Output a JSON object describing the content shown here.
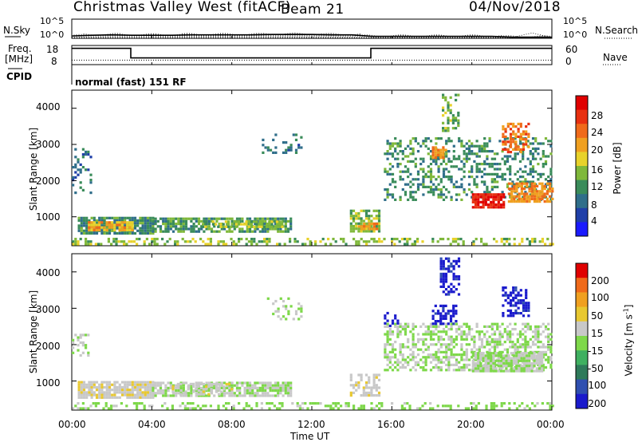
{
  "header": {
    "station": "Christmas Valley West (fitACF)",
    "beam": "Beam 21",
    "date": "04/Nov/2018"
  },
  "top_panels": {
    "nsky_label": "N.Sky",
    "nsky_ticks": [
      "10^5",
      "10^0"
    ],
    "nsearch_label": "N.Search",
    "nsearch_ticks": [
      "10^5",
      "10^0"
    ],
    "freq_label": "Freq.",
    "freq_unit": "[MHz]",
    "freq_ticks": [
      "18",
      "8"
    ],
    "nave_label": "Nave",
    "nave_ticks": [
      "60",
      "0"
    ],
    "cpid_label": "CPID",
    "cpid_text": "normal (fast) 151 RF"
  },
  "colors": {
    "power_scale": [
      "#1a1aff",
      "#1f3fa8",
      "#2f6e8a",
      "#3a8c5a",
      "#7fb83a",
      "#e8d22a",
      "#f0a020",
      "#f06a1a",
      "#e83010",
      "#e00000"
    ],
    "velocity_scale": [
      "#1a1acc",
      "#2f4fb0",
      "#2e7a5a",
      "#3fb060",
      "#7ed84a",
      "#c8c8c8",
      "#e8c830",
      "#f0a020",
      "#f06a1a",
      "#e00000"
    ]
  },
  "chart_data": [
    {
      "type": "line",
      "name": "nsky_nsearch",
      "y_log": true,
      "ylim": [
        0,
        5
      ],
      "x": [
        0,
        1,
        2,
        3,
        4,
        5,
        6,
        7,
        8,
        9,
        10,
        11,
        12,
        13,
        14,
        15,
        16,
        17,
        18,
        19,
        20,
        21,
        22,
        23,
        24
      ],
      "series": [
        {
          "name": "N.Sky",
          "values": [
            0.6,
            0.8,
            0.9,
            0.8,
            0.8,
            0.8,
            0.9,
            0.9,
            0.9,
            0.9,
            1.0,
            1.0,
            1.0,
            0.9,
            0.9,
            0.5,
            0.5,
            0.5,
            0.5,
            0.5,
            0.5,
            0.5,
            0.3,
            0.3,
            0.3
          ]
        },
        {
          "name": "N.Search",
          "values": [
            0.2,
            0.2,
            0.2,
            0.2,
            0.2,
            0.2,
            0.2,
            0.2,
            0.2,
            0.2,
            0.2,
            0.2,
            0.2,
            0.2,
            0.2,
            0.2,
            0.2,
            0.2,
            0.2,
            0.2,
            0.2,
            0.2,
            0.2,
            1.4,
            0.2
          ]
        }
      ]
    },
    {
      "type": "line",
      "name": "freq_nave",
      "x": [
        0,
        2.95,
        2.95,
        14.95,
        14.95,
        24
      ],
      "series": [
        {
          "name": "Freq.",
          "ylim": [
            8,
            18
          ],
          "values": [
            16.5,
            16.5,
            11.5,
            11.5,
            16.5,
            16.5
          ]
        },
        {
          "name": "Nave",
          "ylim": [
            0,
            60
          ],
          "values": [
            14,
            14,
            14,
            14,
            14,
            14
          ]
        }
      ]
    },
    {
      "type": "heatmap",
      "name": "power",
      "xlabel": "",
      "ylabel": "Slant Range [km]",
      "xlim": [
        0,
        24
      ],
      "ylim": [
        200,
        4500
      ],
      "x_ticks": [
        "00:00",
        "04:00",
        "08:00",
        "12:00",
        "16:00",
        "20:00",
        "00:00"
      ],
      "y_ticks": [
        1000,
        2000,
        3000,
        4000
      ],
      "colorbar": {
        "label": "Power [dB]",
        "range": [
          0,
          30
        ],
        "ticks": [
          4,
          8,
          12,
          16,
          20,
          24,
          28
        ]
      },
      "regions": [
        {
          "t0": 0.3,
          "t1": 4.0,
          "r0": 520,
          "r1": 1000,
          "level": 10,
          "density": 0.9
        },
        {
          "t0": 0.8,
          "t1": 3.0,
          "r0": 620,
          "r1": 880,
          "level": 19,
          "density": 0.8
        },
        {
          "t0": 4.0,
          "t1": 10.9,
          "r0": 560,
          "r1": 980,
          "level": 11,
          "density": 0.75
        },
        {
          "t0": 6.5,
          "t1": 10.5,
          "r0": 700,
          "r1": 900,
          "level": 14,
          "density": 0.6
        },
        {
          "t0": 0.0,
          "t1": 1.0,
          "r0": 1700,
          "r1": 2900,
          "level": 8,
          "density": 0.25
        },
        {
          "t0": 13.9,
          "t1": 15.4,
          "r0": 620,
          "r1": 1200,
          "level": 13,
          "density": 0.75
        },
        {
          "t0": 14.3,
          "t1": 15.3,
          "r0": 640,
          "r1": 840,
          "level": 21,
          "density": 0.7
        },
        {
          "t0": 15.6,
          "t1": 24.0,
          "r0": 1500,
          "r1": 3200,
          "level": 10,
          "density": 0.35
        },
        {
          "t0": 20.0,
          "t1": 21.6,
          "r0": 1250,
          "r1": 1650,
          "level": 27,
          "density": 0.9
        },
        {
          "t0": 21.8,
          "t1": 24.0,
          "r0": 1450,
          "r1": 1950,
          "level": 21,
          "density": 0.7
        },
        {
          "t0": 18.0,
          "t1": 18.7,
          "r0": 2600,
          "r1": 2950,
          "level": 21,
          "density": 0.7
        },
        {
          "t0": 18.5,
          "t1": 19.3,
          "r0": 3400,
          "r1": 4400,
          "level": 13,
          "density": 0.4
        },
        {
          "t0": 21.5,
          "t1": 22.8,
          "r0": 2800,
          "r1": 3600,
          "level": 22,
          "density": 0.5
        },
        {
          "t0": 0.0,
          "t1": 24.0,
          "r0": 220,
          "r1": 420,
          "level": 14,
          "density": 0.35
        },
        {
          "t0": 9.5,
          "t1": 11.5,
          "r0": 2700,
          "r1": 3300,
          "level": 8,
          "density": 0.15
        }
      ]
    },
    {
      "type": "heatmap",
      "name": "velocity",
      "xlabel": "Time UT",
      "ylabel": "Slant Range [km]",
      "xlim": [
        0,
        24
      ],
      "ylim": [
        200,
        4500
      ],
      "x_ticks": [
        "00:00",
        "04:00",
        "08:00",
        "12:00",
        "16:00",
        "20:00",
        "00:00"
      ],
      "y_ticks": [
        1000,
        2000,
        3000,
        4000
      ],
      "colorbar": {
        "label": "Velocity [m s^-1]",
        "range": [
          -250,
          250
        ],
        "ticks": [
          200,
          100,
          50,
          15,
          -15,
          -50,
          -100,
          -200
        ]
      },
      "regions": [
        {
          "t0": 0.3,
          "t1": 4.0,
          "r0": 520,
          "r1": 1000,
          "level": 30,
          "density": 0.9
        },
        {
          "t0": 4.0,
          "t1": 10.9,
          "r0": 560,
          "r1": 980,
          "level": 0,
          "density": 0.75
        },
        {
          "t0": 5.0,
          "t1": 8.0,
          "r0": 600,
          "r1": 950,
          "level": 30,
          "density": 0.4
        },
        {
          "t0": 0.0,
          "t1": 1.0,
          "r0": 1700,
          "r1": 2300,
          "level": 0,
          "density": 0.4
        },
        {
          "t0": 13.9,
          "t1": 15.4,
          "r0": 620,
          "r1": 1200,
          "level": 30,
          "density": 0.6
        },
        {
          "t0": 15.6,
          "t1": 24.0,
          "r0": 1300,
          "r1": 2600,
          "level": 0,
          "density": 0.5
        },
        {
          "t0": 20.0,
          "t1": 23.5,
          "r0": 1300,
          "r1": 1800,
          "level": 0,
          "density": 0.85
        },
        {
          "t0": 18.0,
          "t1": 19.2,
          "r0": 2600,
          "r1": 3100,
          "level": -220,
          "density": 0.6
        },
        {
          "t0": 18.4,
          "t1": 19.3,
          "r0": 3400,
          "r1": 4400,
          "level": -220,
          "density": 0.55
        },
        {
          "t0": 21.5,
          "t1": 22.8,
          "r0": 2800,
          "r1": 3600,
          "level": -220,
          "density": 0.5
        },
        {
          "t0": 15.6,
          "t1": 16.4,
          "r0": 2500,
          "r1": 2900,
          "level": -220,
          "density": 0.4
        },
        {
          "t0": 0.0,
          "t1": 24.0,
          "r0": 220,
          "r1": 420,
          "level": -20,
          "density": 0.35
        },
        {
          "t0": 9.5,
          "t1": 11.5,
          "r0": 2700,
          "r1": 3300,
          "level": 0,
          "density": 0.15
        }
      ]
    }
  ],
  "colorbars": {
    "power": {
      "label": "Power [dB]",
      "ticks": [
        "28",
        "24",
        "20",
        "16",
        "12",
        "8",
        "4"
      ]
    },
    "velocity": {
      "label": "Velocity [m s",
      "label_sup": "-1",
      "label_end": "]",
      "ticks": [
        "200",
        "100",
        "50",
        "15",
        "-15",
        "-50",
        "-100",
        "-200"
      ]
    }
  },
  "axes": {
    "ylabel": "Slant Range [km]",
    "y_ticks": [
      "4000",
      "3000",
      "2000",
      "1000"
    ],
    "x_ticks": [
      "00:00",
      "04:00",
      "08:00",
      "12:00",
      "16:00",
      "20:00",
      "00:00"
    ],
    "xlabel": "Time UT"
  }
}
